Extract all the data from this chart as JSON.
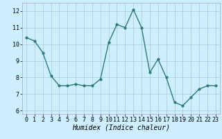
{
  "x": [
    0,
    1,
    2,
    3,
    4,
    5,
    6,
    7,
    8,
    9,
    10,
    11,
    12,
    13,
    14,
    15,
    16,
    17,
    18,
    19,
    20,
    21,
    22,
    23
  ],
  "y": [
    10.4,
    10.2,
    9.5,
    8.1,
    7.5,
    7.5,
    7.6,
    7.5,
    7.5,
    7.9,
    10.1,
    11.2,
    11.0,
    12.1,
    11.0,
    8.3,
    9.1,
    8.0,
    6.5,
    6.3,
    6.8,
    7.3,
    7.5,
    7.5
  ],
  "line_color": "#2d7d6e",
  "marker": "o",
  "marker_size": 2,
  "bg_color": "#cceeff",
  "grid_color": "#aacccc",
  "xlabel": "Humidex (Indice chaleur)",
  "ylim": [
    5.8,
    12.5
  ],
  "xlim": [
    -0.5,
    23.5
  ],
  "yticks": [
    6,
    7,
    8,
    9,
    10,
    11,
    12
  ],
  "xticks": [
    0,
    1,
    2,
    3,
    4,
    5,
    6,
    7,
    8,
    9,
    10,
    11,
    12,
    13,
    14,
    15,
    16,
    17,
    18,
    19,
    20,
    21,
    22,
    23
  ],
  "xlabel_fontsize": 7,
  "tick_fontsize": 6,
  "line_width": 1.0
}
